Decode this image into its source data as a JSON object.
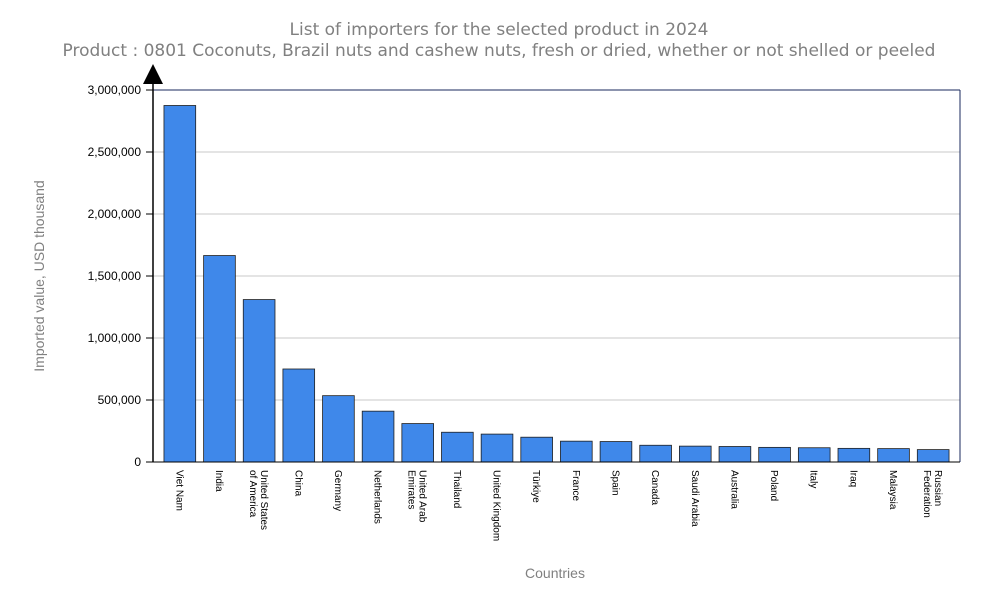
{
  "chart_data": {
    "type": "bar",
    "title": "List of importers for the selected product in 2024",
    "subtitle": "Product : 0801 Coconuts, Brazil nuts and cashew nuts, fresh or dried, whether or not shelled or peeled",
    "xlabel": "Countries",
    "ylabel": "Imported value, USD thousand",
    "ylim": [
      0,
      3000000
    ],
    "y_ticks": [
      0,
      500000,
      1000000,
      1500000,
      2000000,
      2500000,
      3000000
    ],
    "y_tick_labels": [
      "0",
      "500,000",
      "1,000,000",
      "1,500,000",
      "2,000,000",
      "2,500,000",
      "3,000,000"
    ],
    "grid": true,
    "bar_color": "#3f88ea",
    "categories": [
      "Viet Nam",
      "India",
      "United States of America",
      "China",
      "Germany",
      "Netherlands",
      "United Arab Emirates",
      "Thailand",
      "United Kingdom",
      "Türkiye",
      "France",
      "Spain",
      "Canada",
      "Saudi Arabia",
      "Australia",
      "Poland",
      "Italy",
      "Iraq",
      "Malaysia",
      "Russian Federation"
    ],
    "category_lines": [
      [
        "Viet Nam"
      ],
      [
        "India"
      ],
      [
        "United States",
        "of America"
      ],
      [
        "China"
      ],
      [
        "Germany"
      ],
      [
        "Netherlands"
      ],
      [
        "United Arab",
        "Emirates"
      ],
      [
        "Thailand"
      ],
      [
        "United Kingdom"
      ],
      [
        "Türkiye"
      ],
      [
        "France"
      ],
      [
        "Spain"
      ],
      [
        "Canada"
      ],
      [
        "Saudi Arabia"
      ],
      [
        "Australia"
      ],
      [
        "Poland"
      ],
      [
        "Italy"
      ],
      [
        "Iraq"
      ],
      [
        "Malaysia"
      ],
      [
        "Russian",
        "Federation"
      ]
    ],
    "values": [
      2875000,
      1665000,
      1310000,
      750000,
      535000,
      410000,
      310000,
      240000,
      225000,
      200000,
      168000,
      165000,
      135000,
      128000,
      125000,
      118000,
      115000,
      110000,
      108000,
      100000
    ]
  }
}
